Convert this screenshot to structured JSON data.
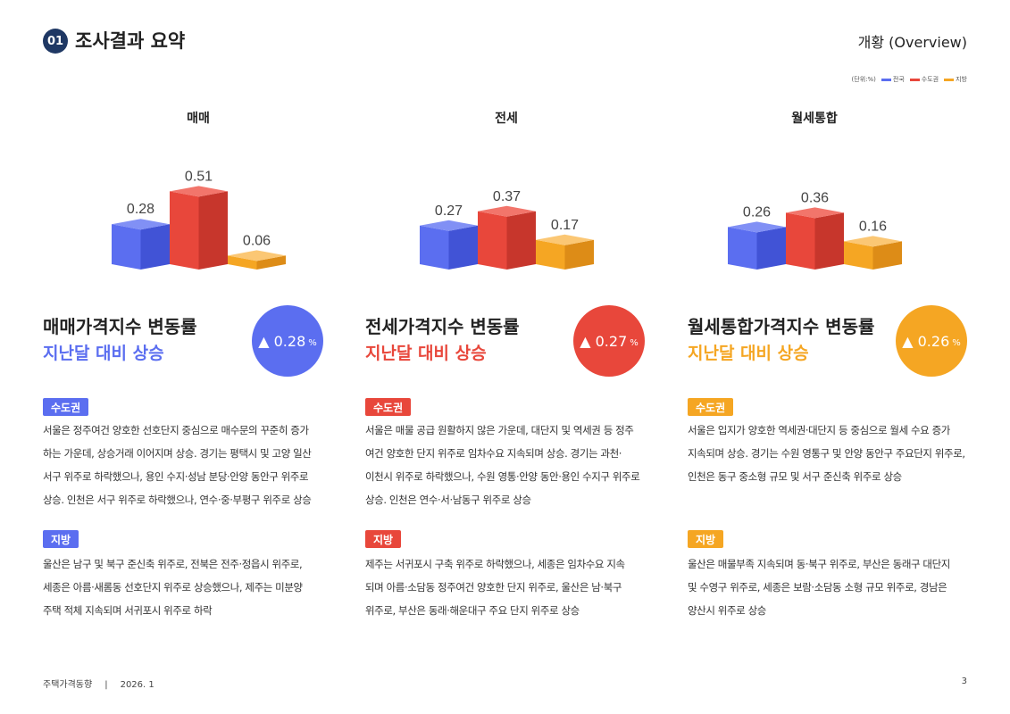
{
  "header": {
    "number": "01",
    "title": "조사결과 요약",
    "right": "개황 (Overview)"
  },
  "legend": {
    "unit": "(단위:%)",
    "items": [
      {
        "label": "전국",
        "color": "#5b6ef0"
      },
      {
        "label": "수도권",
        "color": "#e8473b"
      },
      {
        "label": "지방",
        "color": "#f5a623"
      }
    ]
  },
  "chart_data": [
    {
      "type": "bar",
      "title": "매매",
      "categories": [
        "전국",
        "수도권",
        "지방"
      ],
      "values": [
        0.28,
        0.51,
        0.06
      ]
    },
    {
      "type": "bar",
      "title": "전세",
      "categories": [
        "전국",
        "수도권",
        "지방"
      ],
      "values": [
        0.27,
        0.37,
        0.17
      ]
    },
    {
      "type": "bar",
      "title": "월세통합",
      "categories": [
        "전국",
        "수도권",
        "지방"
      ],
      "values": [
        0.26,
        0.36,
        0.16
      ]
    }
  ],
  "sections": [
    {
      "title": "매매가격지수 변동률",
      "subtitle": "지난달 대비 상승",
      "color": "#5b6ef0",
      "value": "▲ 0.28",
      "unit": "%",
      "capital_label": "수도권",
      "capital_lines": [
        "서울은 정주여건 양호한 선호단지 중심으로 매수문의 꾸준히 증가",
        "하는 가운데, 상승거래 이어지며 상승. 경기는 평택시 및 고양 일산",
        "서구 위주로 하락했으나, 용인 수지·성남 분당·안양 동안구 위주로",
        "상승. 인천은 서구 위주로 하락했으나, 연수·중·부평구 위주로 상승"
      ],
      "region_label": "지방",
      "region_lines": [
        "울산은 남구 및 북구 준신축 위주로, 전북은 전주·정읍시 위주로,",
        "세종은 아름·새롬동 선호단지 위주로 상승했으나, 제주는 미분양",
        "주택 적체 지속되며 서귀포시 위주로 하락"
      ]
    },
    {
      "title": "전세가격지수 변동률",
      "subtitle": "지난달 대비 상승",
      "color": "#e8473b",
      "value": "▲ 0.27",
      "unit": "%",
      "capital_label": "수도권",
      "capital_lines": [
        "서울은 매물 공급 원활하지 않은 가운데, 대단지 및 역세권 등 정주",
        "여건 양호한 단지 위주로 임차수요 지속되며 상승. 경기는 과천·",
        "이천시 위주로 하락했으나, 수원 영통·안양 동안·용인 수지구 위주로",
        "상승. 인천은 연수·서·남동구 위주로 상승"
      ],
      "region_label": "지방",
      "region_lines": [
        "제주는 서귀포시 구축 위주로 하락했으나, 세종은 임차수요 지속",
        "되며 아름·소담동 정주여건 양호한 단지 위주로, 울산은 남·북구",
        "위주로, 부산은 동래·해운대구 주요 단지 위주로 상승"
      ]
    },
    {
      "title": "월세통합가격지수 변동률",
      "subtitle": "지난달 대비 상승",
      "color": "#f5a623",
      "value": "▲ 0.26",
      "unit": "%",
      "capital_label": "수도권",
      "capital_lines": [
        "서울은 입지가 양호한 역세권·대단지 등 중심으로 월세 수요 증가",
        "지속되며 상승. 경기는 수원 영통구 및 안양 동안구 주요단지 위주로,",
        "인천은 동구 중소형 규모 및 서구 준신축 위주로 상승"
      ],
      "region_label": "지방",
      "region_lines": [
        "울산은 매물부족 지속되며 동·북구 위주로, 부산은 동래구 대단지",
        "및 수영구 위주로, 세종은 보람·소담동 소형 규모 위주로, 경남은",
        "양산시 위주로 상승"
      ]
    }
  ],
  "footer": {
    "left": "주택가격동향",
    "sep": "|",
    "date": "2026. 1",
    "page": "3"
  }
}
